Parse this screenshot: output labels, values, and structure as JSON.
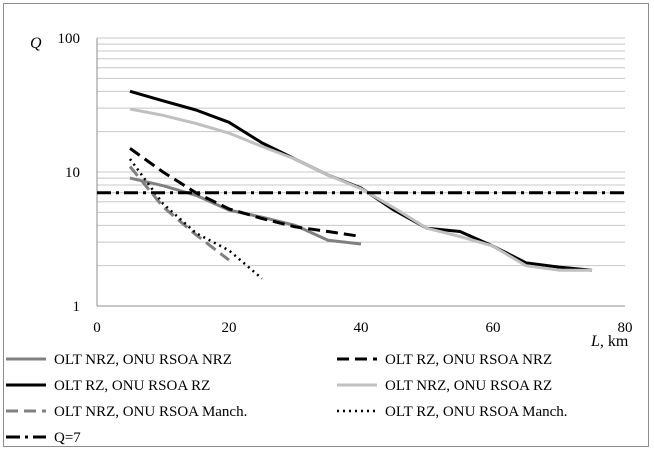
{
  "chart_data": {
    "type": "line",
    "title": "",
    "xlabel": "L, km",
    "ylabel": "Q",
    "y_scale": "log",
    "xlim": [
      0,
      80
    ],
    "ylim": [
      1,
      100
    ],
    "x_ticks": [
      "0",
      "20",
      "40",
      "60",
      "80"
    ],
    "y_ticks": [
      "1",
      "10",
      "100"
    ],
    "grid": "horizontal minor log gridlines",
    "legend_position": "bottom",
    "series": [
      {
        "name": "OLT NRZ, ONU RSOA NRZ",
        "color": "#808080",
        "dash": "solid",
        "x": [
          5,
          10,
          15,
          20,
          25,
          30,
          35,
          40
        ],
        "y": [
          9.0,
          7.9,
          6.7,
          5.2,
          4.6,
          4.0,
          3.1,
          2.9
        ]
      },
      {
        "name": "OLT RZ, ONU RSOA NRZ",
        "color": "#000000",
        "dash": "dash",
        "x": [
          5,
          10,
          15,
          20,
          25,
          30,
          35,
          40
        ],
        "y": [
          15.0,
          10.0,
          7.0,
          5.3,
          4.5,
          3.9,
          3.6,
          3.3
        ]
      },
      {
        "name": "OLT RZ, ONU RSOA RZ",
        "color": "#000000",
        "dash": "solid",
        "x": [
          5,
          10,
          15,
          20,
          25,
          30,
          35,
          40,
          45,
          50,
          55,
          60,
          65,
          70,
          75
        ],
        "y": [
          40,
          34,
          29,
          23.5,
          16.5,
          12.5,
          9.5,
          7.6,
          5.2,
          3.8,
          3.6,
          2.8,
          2.1,
          1.95,
          1.85
        ]
      },
      {
        "name": "OLT NRZ, ONU RSOA RZ",
        "color": "#c0c0c0",
        "dash": "solid",
        "x": [
          5,
          10,
          15,
          20,
          25,
          30,
          35,
          40,
          45,
          50,
          55,
          60,
          65,
          70,
          75
        ],
        "y": [
          29.5,
          26.5,
          23,
          19.5,
          15.5,
          12.5,
          9.5,
          7.5,
          5.4,
          3.8,
          3.3,
          2.8,
          2.0,
          1.85,
          1.85
        ]
      },
      {
        "name": "OLT NRZ, ONU RSOA Manch.",
        "color": "#808080",
        "dash": "dash",
        "x": [
          5,
          10,
          15,
          20
        ],
        "y": [
          11.0,
          5.5,
          3.4,
          2.2
        ]
      },
      {
        "name": "OLT RZ, ONU RSOA Manch.",
        "color": "#000000",
        "dash": "dot",
        "x": [
          5,
          10,
          15,
          20,
          25
        ],
        "y": [
          12.5,
          5.8,
          3.5,
          2.6,
          1.6
        ]
      },
      {
        "name": "Q=7",
        "color": "#000000",
        "dash": "dashdot",
        "x": [
          0,
          80
        ],
        "y": [
          7,
          7
        ]
      }
    ]
  }
}
